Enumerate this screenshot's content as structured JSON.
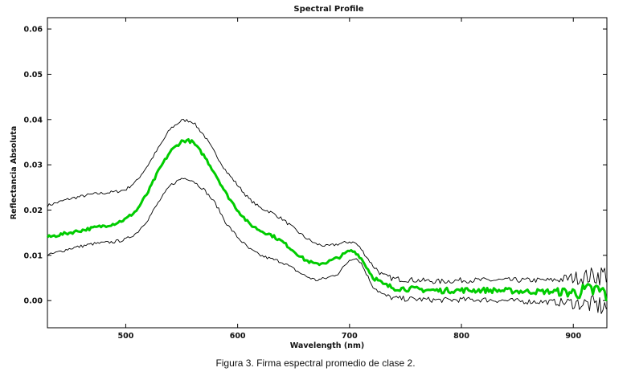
{
  "caption": "Figura 3. Firma espectral promedio de clase 2.",
  "chart_data": {
    "type": "line",
    "title": "Spectral Profile",
    "xlabel": "Wavelength (nm)",
    "ylabel": "Reflectancia Absoluta",
    "xlim": [
      430,
      930
    ],
    "ylim": [
      -0.006,
      0.0625
    ],
    "xticks": [
      500,
      600,
      700,
      800,
      900
    ],
    "yticks": [
      0.0,
      0.01,
      0.02,
      0.03,
      0.04,
      0.05,
      0.06
    ],
    "ytick_labels": [
      "0.00",
      "0.01",
      "0.02",
      "0.03",
      "0.04",
      "0.05",
      "0.06"
    ],
    "grid": false,
    "legend": "none",
    "x": [
      430,
      450,
      470,
      490,
      500,
      510,
      520,
      530,
      540,
      550,
      555,
      560,
      570,
      580,
      590,
      600,
      610,
      620,
      630,
      640,
      650,
      660,
      670,
      680,
      690,
      700,
      705,
      710,
      720,
      730,
      740,
      760,
      780,
      800,
      820,
      840,
      860,
      880,
      900,
      920,
      930
    ],
    "series": [
      {
        "color": "#00cc00",
        "values": [
          0.014,
          0.015,
          0.016,
          0.017,
          0.018,
          0.02,
          0.024,
          0.029,
          0.033,
          0.0352,
          0.0354,
          0.035,
          0.032,
          0.028,
          0.0235,
          0.02,
          0.017,
          0.0155,
          0.0145,
          0.013,
          0.011,
          0.009,
          0.008,
          0.0085,
          0.0095,
          0.011,
          0.0108,
          0.0095,
          0.0055,
          0.0035,
          0.0028,
          0.0025,
          0.0022,
          0.0023,
          0.0023,
          0.0022,
          0.002,
          0.002,
          0.0018,
          0.0022,
          0.0015
        ]
      },
      {
        "color": "#000000",
        "values": [
          0.021,
          0.0225,
          0.0235,
          0.024,
          0.0245,
          0.0265,
          0.03,
          0.034,
          0.038,
          0.0398,
          0.0398,
          0.0395,
          0.0365,
          0.0325,
          0.0285,
          0.0255,
          0.0225,
          0.0205,
          0.0195,
          0.018,
          0.016,
          0.014,
          0.0125,
          0.012,
          0.0125,
          0.013,
          0.0128,
          0.0115,
          0.008,
          0.0055,
          0.0048,
          0.0045,
          0.0042,
          0.0045,
          0.0045,
          0.0045,
          0.0045,
          0.0045,
          0.005,
          0.0055,
          0.006
        ]
      },
      {
        "color": "#000000",
        "values": [
          0.01,
          0.0115,
          0.0125,
          0.013,
          0.0135,
          0.015,
          0.018,
          0.022,
          0.0255,
          0.027,
          0.027,
          0.0265,
          0.0245,
          0.0215,
          0.017,
          0.014,
          0.0115,
          0.01,
          0.0092,
          0.0085,
          0.007,
          0.0055,
          0.0045,
          0.005,
          0.006,
          0.009,
          0.0095,
          0.0085,
          0.0035,
          0.0012,
          0.0005,
          0.0003,
          0.0001,
          0.0002,
          0.0002,
          0.0,
          -0.0002,
          -0.0003,
          -0.0005,
          -0.001,
          -0.0015
        ]
      }
    ]
  }
}
